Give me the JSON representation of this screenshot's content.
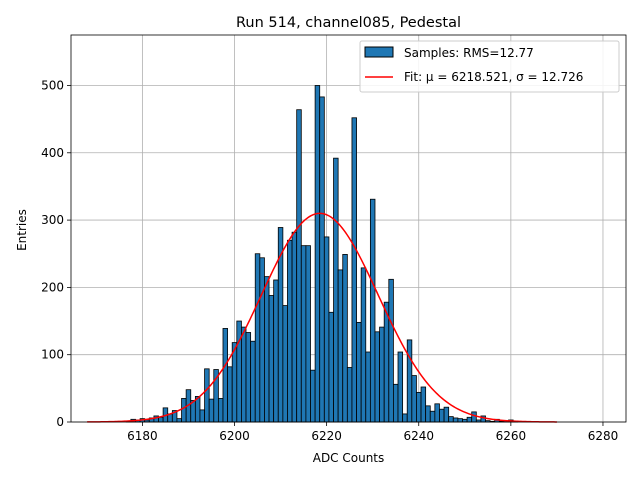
{
  "chart_data": {
    "type": "bar",
    "title": "Run 514, channel085, Pedestal",
    "xlabel": "ADC Counts",
    "ylabel": "Entries",
    "xlim": [
      6164.5,
      6285
    ],
    "ylim": [
      0,
      575
    ],
    "x_ticks": [
      6180,
      6200,
      6220,
      6240,
      6260,
      6280
    ],
    "y_ticks": [
      0,
      100,
      200,
      300,
      400,
      500
    ],
    "grid": true,
    "legend_position": "top-right",
    "legend": {
      "hist_label": "Samples: RMS=12.77",
      "fit_label": "Fit: μ = 6218.521, σ = 12.726"
    },
    "colors": {
      "bar": "#1f77b4",
      "fit": "#ff0000",
      "grid": "#b0b0b0"
    },
    "histogram": {
      "bin_width": 1,
      "bins": [
        [
          6177,
          1
        ],
        [
          6178,
          4
        ],
        [
          6179,
          3
        ],
        [
          6180,
          5
        ],
        [
          6181,
          3
        ],
        [
          6182,
          6
        ],
        [
          6183,
          9
        ],
        [
          6184,
          7
        ],
        [
          6185,
          21
        ],
        [
          6186,
          12
        ],
        [
          6187,
          17
        ],
        [
          6188,
          5
        ],
        [
          6189,
          35
        ],
        [
          6190,
          48
        ],
        [
          6191,
          32
        ],
        [
          6192,
          38
        ],
        [
          6193,
          18
        ],
        [
          6194,
          79
        ],
        [
          6195,
          34
        ],
        [
          6196,
          78
        ],
        [
          6197,
          35
        ],
        [
          6198,
          139
        ],
        [
          6199,
          82
        ],
        [
          6200,
          118
        ],
        [
          6201,
          150
        ],
        [
          6202,
          141
        ],
        [
          6203,
          133
        ],
        [
          6204,
          120
        ],
        [
          6205,
          250
        ],
        [
          6206,
          244
        ],
        [
          6207,
          216
        ],
        [
          6208,
          188
        ],
        [
          6209,
          211
        ],
        [
          6210,
          289
        ],
        [
          6211,
          173
        ],
        [
          6212,
          270
        ],
        [
          6213,
          282
        ],
        [
          6214,
          464
        ],
        [
          6215,
          262
        ],
        [
          6216,
          262
        ],
        [
          6217,
          77
        ],
        [
          6218,
          500
        ],
        [
          6219,
          483
        ],
        [
          6220,
          275
        ],
        [
          6221,
          163
        ],
        [
          6222,
          392
        ],
        [
          6223,
          226
        ],
        [
          6224,
          249
        ],
        [
          6225,
          81
        ],
        [
          6226,
          452
        ],
        [
          6227,
          148
        ],
        [
          6228,
          229
        ],
        [
          6229,
          104
        ],
        [
          6230,
          331
        ],
        [
          6231,
          134
        ],
        [
          6232,
          141
        ],
        [
          6233,
          178
        ],
        [
          6234,
          212
        ],
        [
          6235,
          56
        ],
        [
          6236,
          104
        ],
        [
          6237,
          12
        ],
        [
          6238,
          122
        ],
        [
          6239,
          69
        ],
        [
          6240,
          44
        ],
        [
          6241,
          52
        ],
        [
          6242,
          24
        ],
        [
          6243,
          16
        ],
        [
          6244,
          27
        ],
        [
          6245,
          19
        ],
        [
          6246,
          22
        ],
        [
          6247,
          8
        ],
        [
          6248,
          6
        ],
        [
          6249,
          5
        ],
        [
          6250,
          4
        ],
        [
          6251,
          7
        ],
        [
          6252,
          15
        ],
        [
          6253,
          3
        ],
        [
          6254,
          9
        ],
        [
          6255,
          2
        ],
        [
          6256,
          1
        ],
        [
          6257,
          4
        ],
        [
          6258,
          1
        ],
        [
          6259,
          2
        ],
        [
          6260,
          3
        ],
        [
          6261,
          1
        ]
      ]
    },
    "fit": {
      "mu": 6218.521,
      "sigma": 12.726,
      "amplitude": 310,
      "x_range": [
        6168,
        6270
      ]
    }
  }
}
